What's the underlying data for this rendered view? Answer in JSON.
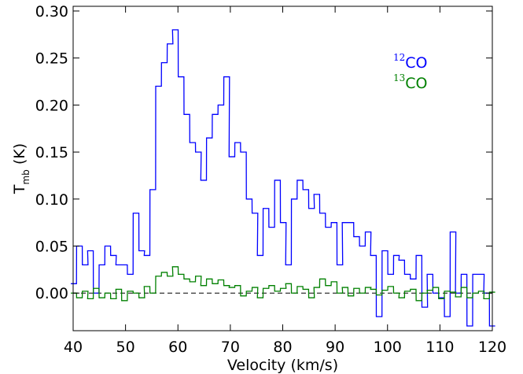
{
  "chart_data": {
    "type": "line",
    "style": "step",
    "xlabel": "Velocity (km/s)",
    "ylabel": {
      "base": "T",
      "subscript": "mb",
      "unit": " (K)"
    },
    "xlim": [
      40,
      120
    ],
    "ylim": [
      -0.04,
      0.305
    ],
    "xticks": [
      40,
      50,
      60,
      70,
      80,
      90,
      100,
      110,
      120
    ],
    "yticks": [
      0.0,
      0.05,
      0.1,
      0.15,
      0.2,
      0.25,
      0.3
    ],
    "xtick_labels": [
      "40",
      "50",
      "60",
      "70",
      "80",
      "90",
      "100",
      "110",
      "120"
    ],
    "ytick_labels": [
      "0.00",
      "0.05",
      "0.10",
      "0.15",
      "0.20",
      "0.25",
      "0.30"
    ],
    "grid": false,
    "legend_position": "top-right",
    "zero_line": {
      "y": 0,
      "style": "dashed"
    },
    "series": [
      {
        "name": "CO",
        "name_sup": "12",
        "color": "#0000ff",
        "x": [
          40.1,
          41.2,
          42.3,
          43.3,
          44.4,
          45.5,
          46.6,
          47.7,
          48.7,
          49.8,
          50.9,
          52.0,
          53.1,
          54.1,
          55.2,
          56.3,
          57.4,
          58.5,
          59.5,
          60.6,
          61.7,
          62.8,
          63.9,
          64.9,
          66.0,
          67.1,
          68.2,
          69.3,
          70.3,
          71.4,
          72.5,
          73.6,
          74.7,
          75.7,
          76.8,
          77.9,
          79.0,
          80.1,
          81.1,
          82.2,
          83.3,
          84.4,
          85.5,
          86.5,
          87.6,
          88.7,
          89.8,
          90.9,
          91.9,
          93.0,
          94.1,
          95.2,
          96.3,
          97.3,
          98.4,
          99.5,
          100.6,
          101.7,
          102.7,
          103.8,
          104.9,
          106.0,
          107.1,
          108.1,
          109.2,
          110.3,
          111.4,
          112.5,
          113.5,
          114.6,
          115.7,
          116.8,
          117.9,
          118.9,
          120.0
        ],
        "values": [
          0.01,
          0.05,
          0.03,
          0.045,
          0.0,
          0.03,
          0.05,
          0.04,
          0.03,
          0.03,
          0.02,
          0.085,
          0.045,
          0.04,
          0.11,
          0.22,
          0.245,
          0.265,
          0.28,
          0.23,
          0.19,
          0.16,
          0.15,
          0.12,
          0.165,
          0.19,
          0.2,
          0.23,
          0.145,
          0.16,
          0.15,
          0.1,
          0.085,
          0.04,
          0.09,
          0.07,
          0.12,
          0.075,
          0.03,
          0.1,
          0.12,
          0.11,
          0.09,
          0.105,
          0.085,
          0.07,
          0.075,
          0.03,
          0.075,
          0.075,
          0.06,
          0.05,
          0.065,
          0.04,
          -0.025,
          0.045,
          0.02,
          0.04,
          0.035,
          0.02,
          0.015,
          0.04,
          -0.015,
          0.02,
          0.0,
          -0.005,
          -0.025,
          0.065,
          0.0,
          0.02,
          -0.035,
          0.02,
          0.02,
          0.0,
          -0.035
        ]
      },
      {
        "name": "CO",
        "name_sup": "13",
        "color": "#008000",
        "x": [
          40.1,
          41.2,
          42.3,
          43.3,
          44.4,
          45.5,
          46.6,
          47.7,
          48.7,
          49.8,
          50.9,
          52.0,
          53.1,
          54.1,
          55.2,
          56.3,
          57.4,
          58.5,
          59.5,
          60.6,
          61.7,
          62.8,
          63.9,
          64.9,
          66.0,
          67.1,
          68.2,
          69.3,
          70.3,
          71.4,
          72.5,
          73.6,
          74.7,
          75.7,
          76.8,
          77.9,
          79.0,
          80.1,
          81.1,
          82.2,
          83.3,
          84.4,
          85.5,
          86.5,
          87.6,
          88.7,
          89.8,
          90.9,
          91.9,
          93.0,
          94.1,
          95.2,
          96.3,
          97.3,
          98.4,
          99.5,
          100.6,
          101.7,
          102.7,
          103.8,
          104.9,
          106.0,
          107.1,
          108.1,
          109.2,
          110.3,
          111.4,
          112.5,
          113.5,
          114.6,
          115.7,
          116.8,
          117.9,
          118.9,
          120.0
        ],
        "values": [
          0.0,
          -0.005,
          0.002,
          -0.006,
          0.005,
          -0.005,
          0.0,
          -0.006,
          0.004,
          -0.008,
          0.002,
          0.0,
          -0.005,
          0.007,
          0.0,
          0.018,
          0.022,
          0.018,
          0.028,
          0.02,
          0.015,
          0.012,
          0.018,
          0.008,
          0.015,
          0.01,
          0.014,
          0.008,
          0.006,
          0.008,
          -0.003,
          0.002,
          0.006,
          -0.005,
          0.005,
          0.008,
          0.002,
          0.005,
          0.01,
          0.0,
          0.007,
          0.004,
          -0.005,
          0.006,
          0.015,
          0.008,
          0.012,
          0.0,
          0.006,
          -0.003,
          0.005,
          0.0,
          0.006,
          0.004,
          -0.002,
          0.003,
          0.007,
          0.0,
          -0.005,
          0.002,
          0.004,
          -0.008,
          0.0,
          0.003,
          0.006,
          -0.006,
          0.002,
          0.001,
          -0.004,
          0.006,
          -0.005,
          0.0,
          0.002,
          -0.006,
          0.001
        ]
      }
    ]
  }
}
